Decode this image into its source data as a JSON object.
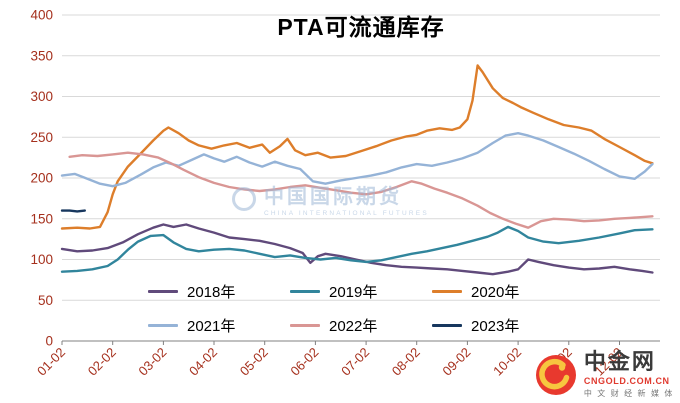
{
  "watermark": {
    "brand": "中国国际期货",
    "caption": "CHINA INTERNATIONAL FUTURES"
  },
  "logo": {
    "name": "中金网",
    "domain": "CNGOLD.COM.CN",
    "tagline": "中 文 财 经 新 媒 体"
  },
  "chart_data": {
    "type": "line",
    "title": "PTA可流通库存",
    "xlabel": "",
    "ylabel": "",
    "ylim": [
      0,
      400
    ],
    "yticks": [
      0,
      50,
      100,
      150,
      200,
      250,
      300,
      350,
      400
    ],
    "xticks": [
      "01-02",
      "02-02",
      "03-02",
      "04-02",
      "05-02",
      "06-02",
      "07-02",
      "08-02",
      "09-02",
      "10-02",
      "11-02",
      "12-02"
    ],
    "x_unit": "months since 01-02 (tick i at x=i)",
    "grid": true,
    "legend_position": "inside-bottom, two rows of three",
    "axis_tick_color": "#a5301d",
    "series": [
      {
        "name": "2018年",
        "color": "#604a7b",
        "x": [
          0,
          0.3,
          0.6,
          0.9,
          1.2,
          1.5,
          1.8,
          2.0,
          2.2,
          2.45,
          2.7,
          3.0,
          3.3,
          3.6,
          3.9,
          4.2,
          4.5,
          4.75,
          4.9,
          5.05,
          5.2,
          5.5,
          5.8,
          6.1,
          6.4,
          6.7,
          7.0,
          7.3,
          7.6,
          7.9,
          8.2,
          8.5,
          8.8,
          9.0,
          9.2,
          9.4,
          9.7,
          10.0,
          10.3,
          10.6,
          10.9,
          11.2,
          11.45,
          11.65
        ],
        "y": [
          113,
          110,
          111,
          114,
          121,
          131,
          139,
          143,
          140,
          143,
          138,
          133,
          127,
          125,
          123,
          119,
          114,
          108,
          96,
          104,
          107,
          104,
          100,
          96,
          93,
          91,
          90,
          89,
          88,
          86,
          84,
          82,
          85,
          88,
          100,
          97,
          93,
          90,
          88,
          89,
          91,
          88,
          86,
          84
        ]
      },
      {
        "name": "2019年",
        "color": "#31859c",
        "x": [
          0,
          0.3,
          0.6,
          0.9,
          1.1,
          1.3,
          1.5,
          1.75,
          2.0,
          2.2,
          2.45,
          2.7,
          3.0,
          3.3,
          3.6,
          3.9,
          4.2,
          4.5,
          4.8,
          5.1,
          5.4,
          5.7,
          6.0,
          6.3,
          6.6,
          6.9,
          7.2,
          7.5,
          7.8,
          8.1,
          8.4,
          8.6,
          8.8,
          9.0,
          9.2,
          9.5,
          9.8,
          10.2,
          10.6,
          11.0,
          11.3,
          11.65
        ],
        "y": [
          85,
          86,
          88,
          92,
          100,
          112,
          122,
          129,
          130,
          121,
          113,
          110,
          112,
          113,
          111,
          107,
          103,
          105,
          102,
          100,
          102,
          99,
          97,
          99,
          103,
          107,
          110,
          114,
          118,
          123,
          128,
          133,
          140,
          135,
          127,
          122,
          120,
          123,
          127,
          132,
          136,
          137
        ]
      },
      {
        "name": "2020年",
        "color": "#dd7e2b",
        "x": [
          0,
          0.3,
          0.55,
          0.75,
          0.9,
          1.0,
          1.1,
          1.3,
          1.55,
          1.8,
          2.0,
          2.1,
          2.3,
          2.5,
          2.7,
          2.95,
          3.2,
          3.45,
          3.7,
          3.95,
          4.1,
          4.3,
          4.45,
          4.6,
          4.8,
          5.05,
          5.3,
          5.6,
          5.9,
          6.2,
          6.5,
          6.8,
          7.0,
          7.2,
          7.45,
          7.7,
          7.85,
          8.0,
          8.1,
          8.2,
          8.3,
          8.5,
          8.7,
          8.9,
          9.05,
          9.3,
          9.6,
          9.9,
          10.2,
          10.45,
          10.7,
          11.0,
          11.3,
          11.5,
          11.65
        ],
        "y": [
          138,
          139,
          138,
          140,
          158,
          180,
          196,
          214,
          230,
          246,
          258,
          262,
          255,
          246,
          240,
          236,
          240,
          243,
          237,
          241,
          231,
          239,
          248,
          234,
          228,
          231,
          225,
          227,
          233,
          239,
          246,
          251,
          253,
          258,
          261,
          259,
          262,
          272,
          295,
          338,
          330,
          310,
          298,
          292,
          287,
          280,
          272,
          265,
          262,
          258,
          248,
          238,
          228,
          221,
          218
        ]
      },
      {
        "name": "2021年",
        "color": "#95b3d7",
        "x": [
          0,
          0.25,
          0.5,
          0.75,
          1.0,
          1.25,
          1.55,
          1.8,
          2.05,
          2.3,
          2.55,
          2.8,
          3.0,
          3.2,
          3.45,
          3.7,
          3.95,
          4.2,
          4.45,
          4.7,
          4.95,
          5.2,
          5.5,
          5.8,
          6.1,
          6.4,
          6.7,
          7.0,
          7.3,
          7.6,
          7.9,
          8.2,
          8.5,
          8.75,
          9.0,
          9.2,
          9.5,
          9.8,
          10.1,
          10.4,
          10.7,
          11.0,
          11.3,
          11.5,
          11.65
        ],
        "y": [
          203,
          205,
          199,
          193,
          190,
          194,
          204,
          213,
          219,
          215,
          222,
          229,
          224,
          220,
          226,
          219,
          214,
          220,
          215,
          211,
          196,
          193,
          197,
          200,
          203,
          207,
          213,
          217,
          215,
          219,
          224,
          231,
          243,
          252,
          255,
          252,
          246,
          238,
          230,
          221,
          211,
          202,
          199,
          208,
          217
        ]
      },
      {
        "name": "2022年",
        "color": "#d99694",
        "x": [
          0.15,
          0.4,
          0.7,
          1.0,
          1.3,
          1.6,
          1.9,
          2.15,
          2.4,
          2.7,
          3.0,
          3.3,
          3.6,
          3.9,
          4.2,
          4.5,
          4.8,
          5.1,
          5.4,
          5.7,
          6.0,
          6.3,
          6.6,
          6.9,
          7.1,
          7.35,
          7.6,
          7.9,
          8.2,
          8.45,
          8.7,
          8.95,
          9.2,
          9.45,
          9.7,
          10.0,
          10.3,
          10.6,
          10.9,
          11.2,
          11.45,
          11.65
        ],
        "y": [
          226,
          228,
          227,
          229,
          231,
          229,
          225,
          218,
          210,
          201,
          194,
          189,
          186,
          184,
          186,
          189,
          191,
          188,
          185,
          182,
          180,
          183,
          189,
          196,
          193,
          187,
          182,
          175,
          166,
          157,
          150,
          144,
          139,
          147,
          150,
          149,
          147,
          148,
          150,
          151,
          152,
          153
        ]
      },
      {
        "name": "2023年",
        "color": "#17375e",
        "x": [
          0,
          0.15,
          0.3,
          0.45
        ],
        "y": [
          160,
          160,
          159,
          160
        ]
      }
    ]
  }
}
